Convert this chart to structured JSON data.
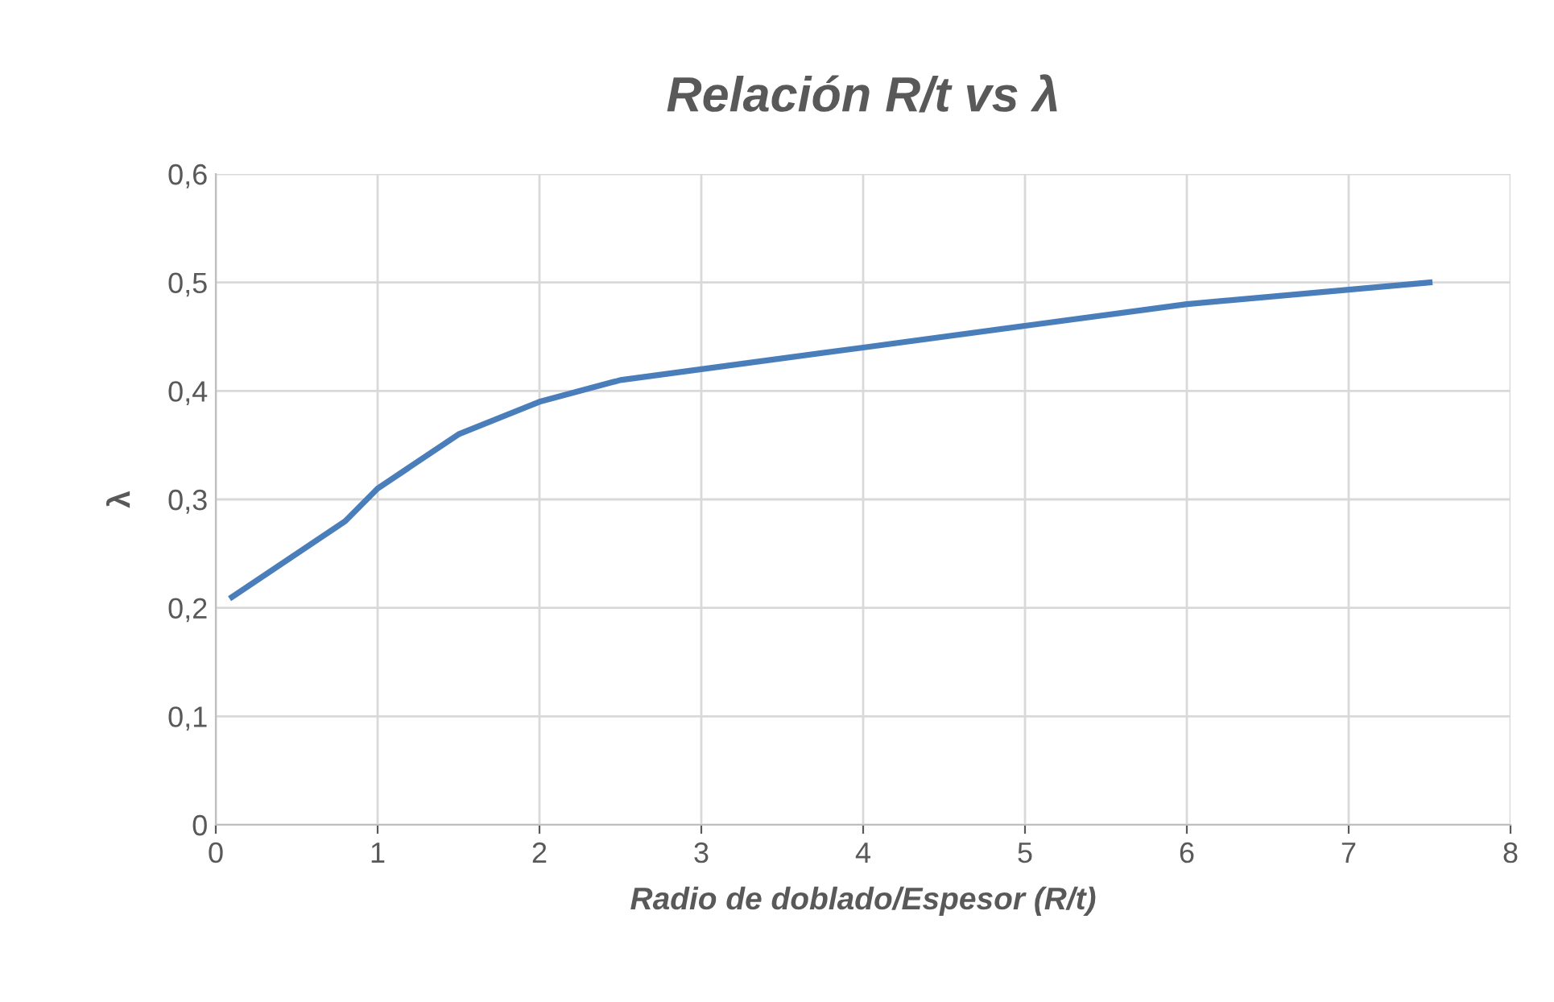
{
  "chart_data": {
    "type": "line",
    "title": "Relación R/t vs λ",
    "xlabel": "Radio de doblado/Espesor (R/t)",
    "ylabel": "λ",
    "x": [
      0.1,
      0.8,
      1,
      1.2,
      1.5,
      2,
      2.5,
      3,
      4,
      5,
      6,
      7.5
    ],
    "series": [
      {
        "color": "#4a7ebb",
        "values": [
          0.21,
          0.28,
          0.31,
          0.33,
          0.36,
          0.39,
          0.41,
          0.42,
          0.44,
          0.46,
          0.48,
          0.5
        ]
      }
    ],
    "xlim": [
      0,
      8
    ],
    "xticks": [
      0,
      1,
      2,
      3,
      4,
      5,
      6,
      7,
      8
    ],
    "ylim": [
      0,
      0.6
    ],
    "yticks": [
      0,
      {
        "value": 0.1,
        "label": "0,1"
      },
      {
        "value": 0.2,
        "label": "0,2"
      },
      {
        "value": 0.3,
        "label": "0,3"
      },
      {
        "value": 0.4,
        "label": "0,4"
      },
      {
        "value": 0.5,
        "label": "0,5"
      },
      {
        "value": 0.6,
        "label": "0,6"
      }
    ],
    "grid": true,
    "legend": false,
    "marker": "none",
    "line_style": "solid"
  }
}
